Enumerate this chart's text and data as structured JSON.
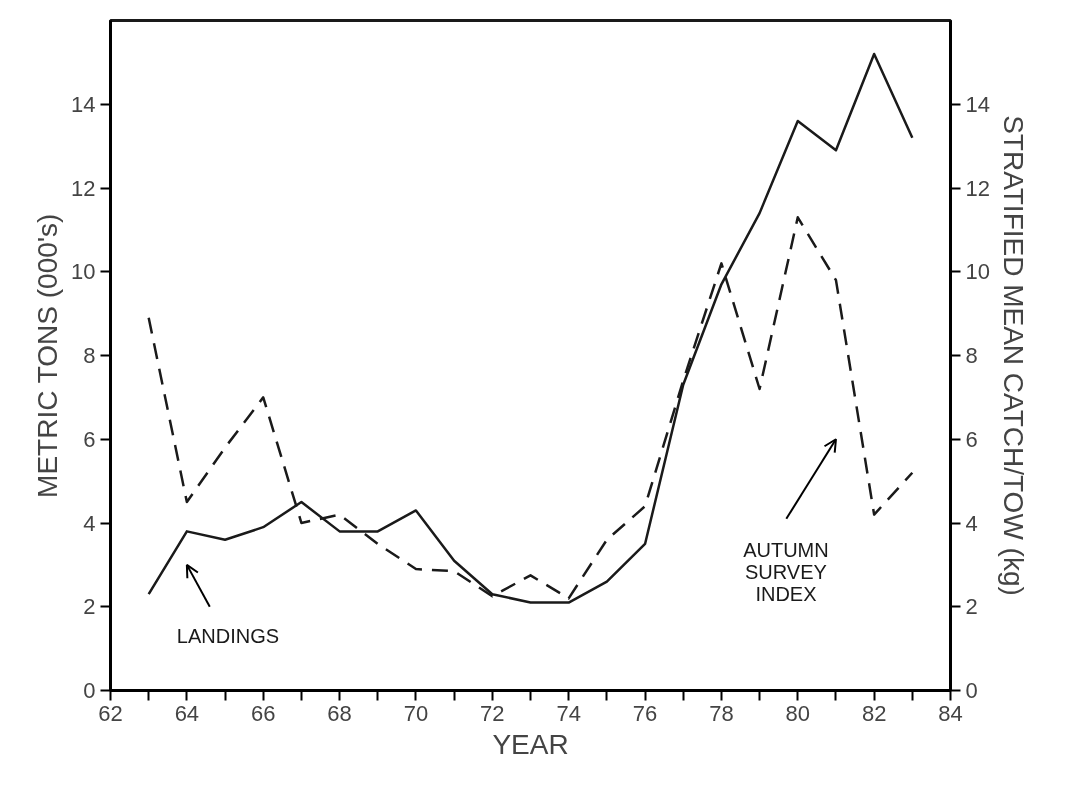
{
  "chart_data": {
    "type": "line",
    "xlabel": "YEAR",
    "ylabel": "METRIC TONS (000's)",
    "y2label": "STRATIFIED MEAN CATCH/TOW (kg)",
    "x": [
      63,
      64,
      65,
      66,
      67,
      68,
      69,
      70,
      71,
      72,
      73,
      74,
      75,
      76,
      77,
      78,
      79,
      80,
      81,
      82,
      83
    ],
    "series": [
      {
        "name": "LANDINGS",
        "color": "#1a1a1a",
        "line_style": "solid",
        "values": [
          2.3,
          3.8,
          3.6,
          3.9,
          4.5,
          3.8,
          3.8,
          4.3,
          3.1,
          2.3,
          2.1,
          2.1,
          2.6,
          3.5,
          7.3,
          9.7,
          11.4,
          13.6,
          12.9,
          15.2,
          13.2
        ]
      },
      {
        "name": "AUTUMN SURVEY INDEX",
        "color": "#1a1a1a",
        "line_style": "dashed",
        "values": [
          8.9,
          4.5,
          5.8,
          7.0,
          4.0,
          4.2,
          3.5,
          2.9,
          2.85,
          2.25,
          2.75,
          2.2,
          3.6,
          4.4,
          7.4,
          10.2,
          7.2,
          11.3,
          9.8,
          4.2,
          5.2
        ]
      }
    ],
    "xlim": [
      62,
      84
    ],
    "xticks": [
      62,
      {
        "value": 63,
        "label": null
      },
      64,
      {
        "value": 65,
        "label": null
      },
      66,
      {
        "value": 67,
        "label": null
      },
      68,
      {
        "value": 69,
        "label": null
      },
      70,
      {
        "value": 71,
        "label": null
      },
      72,
      {
        "value": 73,
        "label": null
      },
      74,
      {
        "value": 75,
        "label": null
      },
      76,
      {
        "value": 77,
        "label": null
      },
      78,
      {
        "value": 79,
        "label": null
      },
      80,
      {
        "value": 81,
        "label": null
      },
      82,
      {
        "value": 83,
        "label": null
      },
      84
    ],
    "ylim": [
      0,
      16
    ],
    "yticks": [
      0,
      2,
      4,
      6,
      8,
      10,
      12,
      14
    ],
    "y2lim": [
      0,
      16
    ],
    "y2ticks": [
      0,
      2,
      4,
      6,
      8,
      10,
      12,
      14
    ],
    "grid": false,
    "legend": false
  }
}
